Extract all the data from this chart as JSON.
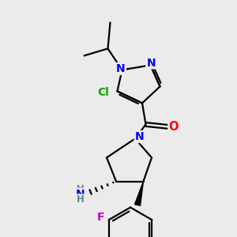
{
  "bg_color": "#ebebeb",
  "atom_colors": {
    "N": "#0000ff",
    "O": "#ff0000",
    "Cl": "#00aa00",
    "F": "#cc00cc",
    "NH_teal": "#4a9090",
    "C": "#000000"
  },
  "bond_color": "#000000",
  "lw": 1.6
}
